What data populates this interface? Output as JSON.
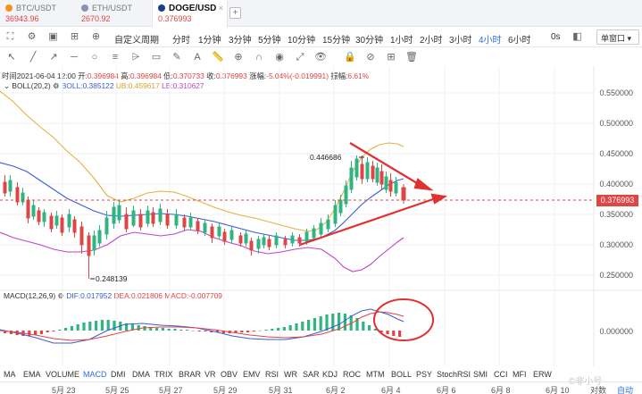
{
  "tabs": [
    {
      "name": "BTC/USDT",
      "price": "36943.96",
      "color": "#f7931a"
    },
    {
      "name": "ETH/USDT",
      "price": "2670.92",
      "color": "#8a92b2"
    },
    {
      "name": "DOGE/USD",
      "price": "0.376993",
      "color": "#1a3e8a",
      "close": "×"
    }
  ],
  "add_tab": "+",
  "toolbar": {
    "custom_period": "自定义周期",
    "periods": [
      "分时",
      "1分钟",
      "3分钟",
      "5分钟",
      "10分钟",
      "15分钟",
      "30分钟",
      "1小时",
      "2小时",
      "3小时",
      "4小时",
      "6小时"
    ],
    "active_period": "4小时",
    "refresh": "0s",
    "window_mode": "单窗口"
  },
  "info": {
    "time_label": "时间",
    "time": "2021-06-04 12:00",
    "open_label": "开",
    "open": "0.396984",
    "high_label": "高",
    "high": "0.396984",
    "low_label": "低",
    "low": "0.370733",
    "close_label": "收",
    "close": "0.376993",
    "change_label": "涨幅",
    "change": "-5.04%(-0.019991)",
    "amplitude_label": "振幅",
    "amplitude": "6.61%"
  },
  "boll": {
    "name": "BOLL(20,2)",
    "mid": "BOLL:0.385122",
    "up": "UB:0.459617",
    "low": "LB:0.310627"
  },
  "macd": {
    "name": "MACD(12,26,9)",
    "dif": "DIF:0.017952",
    "dea": "DEA:0.021806",
    "macd": "MACD:-0.007709"
  },
  "price_axis": [
    "0.550000",
    "0.500000",
    "0.450000",
    "0.400000",
    "0.350000",
    "0.300000",
    "0.250000"
  ],
  "current_price": "0.376993",
  "macd_axis": "0.000000",
  "annotations": {
    "high": "0.446686",
    "low": "0.248139"
  },
  "indicators": [
    "MA",
    "EMA",
    "VOLUME",
    "MACD",
    "DMI",
    "DMA",
    "TRIX",
    "BRAR",
    "VR",
    "OBV",
    "EMV",
    "RSI",
    "WR",
    "SAR",
    "KDJ",
    "ROC",
    "MTM",
    "BOLL",
    "PSY",
    "StochRSI",
    "SMI",
    "CCI",
    "MFI",
    "ERW"
  ],
  "active_indicator": "MACD",
  "dates": [
    "5月 23",
    "5月 25",
    "5月 27",
    "5月 29",
    "5月 31",
    "6月 2",
    "6月 4",
    "6月 6",
    "6月 8",
    "6月 10"
  ],
  "footer": {
    "compare": "对数",
    "auto": "自动"
  },
  "watermark": "©非小号",
  "colors": {
    "up": "#2fb580",
    "down": "#e04545",
    "mid": "#3a5bd9",
    "upper": "#e6b040",
    "lower": "#c044c4"
  }
}
